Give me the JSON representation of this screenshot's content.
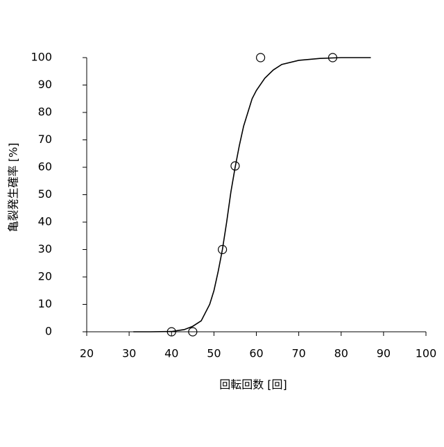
{
  "chart_data": {
    "type": "scatter",
    "xlabel": "回転回数 [回]",
    "ylabel": "亀裂発生確率 [%]",
    "xlim": [
      20,
      100
    ],
    "xticks": [
      20,
      30,
      40,
      50,
      60,
      70,
      80,
      90,
      100
    ],
    "ylim": [
      0,
      100
    ],
    "yticks": [
      0,
      10,
      20,
      30,
      40,
      50,
      60,
      70,
      80,
      90,
      100
    ],
    "x": [
      40,
      45,
      52,
      55,
      61,
      78
    ],
    "values": [
      0,
      0,
      30,
      60.5,
      100,
      100
    ],
    "color": "#000000",
    "curve": {
      "x": [
        31,
        35,
        40,
        43,
        45,
        47,
        49,
        50,
        51,
        52,
        53,
        54,
        55,
        56,
        57,
        58,
        59,
        60,
        62,
        64,
        66,
        70,
        75,
        80,
        87
      ],
      "values": [
        0,
        0,
        0.1,
        0.8,
        2,
        4,
        10,
        15,
        22,
        30,
        40,
        51,
        60,
        68,
        75,
        80,
        85,
        88,
        92.5,
        95.5,
        97.5,
        99,
        99.7,
        100,
        100
      ]
    }
  }
}
